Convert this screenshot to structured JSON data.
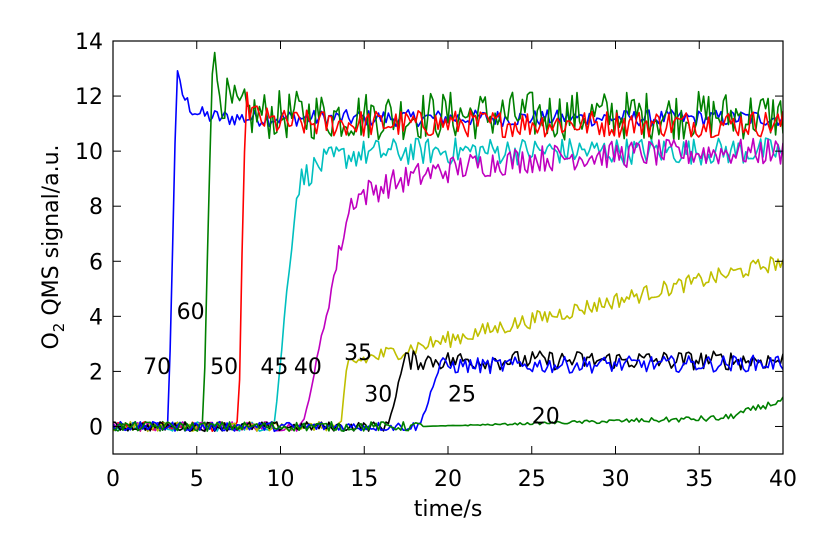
{
  "chart_data": {
    "type": "line",
    "xlabel": "time/s",
    "ylabel_main": "O",
    "ylabel_subscript": "2",
    "ylabel_rest": " QMS signal/a.u.",
    "xlim": [
      0,
      40
    ],
    "ylim": [
      -1,
      14
    ],
    "xticks": [
      0,
      5,
      10,
      15,
      20,
      25,
      30,
      35,
      40
    ],
    "yticks": [
      0,
      2,
      4,
      6,
      8,
      10,
      12,
      14
    ],
    "grid": false,
    "series": [
      {
        "label": "70",
        "color": "#0000ff",
        "onset": 3.3,
        "peak": 12.8,
        "plateau": 11.2,
        "rise": 0.5,
        "tau": 0.0,
        "noise": 0.3,
        "label_x": 1.8,
        "label_y": 2.2
      },
      {
        "label": "60",
        "color": "#008000",
        "onset": 5.4,
        "peak": 13.5,
        "plateau": 11.3,
        "rise": 0.5,
        "tau": 0.0,
        "noise": 0.9,
        "label_x": 3.8,
        "label_y": 4.2
      },
      {
        "label": "50",
        "color": "#ff0000",
        "onset": 7.5,
        "peak": 11.8,
        "plateau": 11.0,
        "rise": 0.4,
        "tau": 0.0,
        "noise": 0.5,
        "label_x": 5.8,
        "label_y": 2.2
      },
      {
        "label": "45",
        "color": "#00bfbf",
        "onset": 9.6,
        "peak": 9.8,
        "plateau": 10.0,
        "rise": 1.5,
        "tau": 1.5,
        "noise": 0.5,
        "label_x": 8.8,
        "label_y": 2.2
      },
      {
        "label": "40",
        "color": "#bf00bf",
        "onset": 11.3,
        "peak": 10.2,
        "plateau": 10.0,
        "rise": 3.0,
        "tau": 6.0,
        "noise": 0.5,
        "label_x": 10.8,
        "label_y": 2.2
      },
      {
        "label": "35",
        "color": "#bfbf00",
        "onset": 13.6,
        "peak": 2.3,
        "plateau": 6.0,
        "rise": 0.4,
        "tau": 0.0,
        "noise": 0.3,
        "label_x": 13.8,
        "label_y": 2.7
      },
      {
        "label": "30",
        "color": "#000000",
        "onset": 16.4,
        "peak": 2.4,
        "plateau": 2.4,
        "rise": 1.0,
        "tau": 0.0,
        "noise": 0.35,
        "label_x": 15.0,
        "label_y": 1.2
      },
      {
        "label": "25",
        "color": "#0000ff",
        "onset": 18.3,
        "peak": 2.2,
        "plateau": 2.3,
        "rise": 1.2,
        "tau": 0.0,
        "noise": 0.3,
        "label_x": 20.0,
        "label_y": 1.2
      },
      {
        "label": "20",
        "color": "#008000",
        "onset": 18.5,
        "peak": 0.3,
        "plateau": 0.95,
        "rise": 18.0,
        "tau": 0.0,
        "noise": 0.12,
        "label_x": 25.0,
        "label_y": 0.4
      }
    ]
  }
}
